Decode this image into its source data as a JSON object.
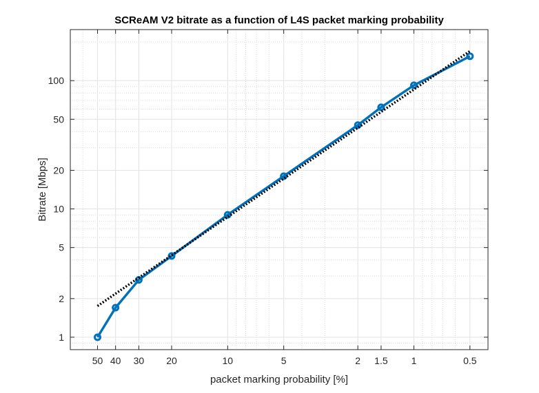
{
  "chart_data": {
    "type": "line",
    "title": "SCReAM V2 bitrate as a function of L4S packet marking probability",
    "xlabel": "packet marking probability [%]",
    "ylabel": "Bitrate [Mbps]",
    "x_scale": "log",
    "x_direction": "reversed",
    "y_scale": "log",
    "xlim": [
      0.4,
      70
    ],
    "ylim": [
      0.8,
      250
    ],
    "grid": true,
    "minor_grid": true,
    "x_ticks": [
      50,
      40,
      30,
      20,
      10,
      5,
      2,
      1.5,
      1,
      0.5
    ],
    "x_tick_labels": [
      "50",
      "40",
      "30",
      "20",
      "10",
      "5",
      "2",
      "1.5",
      "1",
      "0.5"
    ],
    "y_ticks": [
      1,
      2,
      5,
      10,
      20,
      50,
      100
    ],
    "y_tick_labels": [
      "1",
      "2",
      "5",
      "10",
      "20",
      "50",
      "100"
    ],
    "series": [
      {
        "color": "#0072BD",
        "style": "solid",
        "marker": "circle",
        "x": [
          50,
          40,
          30,
          20,
          10,
          5,
          2,
          1.5,
          1,
          0.5
        ],
        "y": [
          1.0,
          1.7,
          2.8,
          4.3,
          9.0,
          18.0,
          45.0,
          62.0,
          92.0,
          155.0
        ]
      },
      {
        "color": "#000000",
        "style": "dotted",
        "marker": "none",
        "x": [
          50,
          0.5
        ],
        "y": [
          1.75,
          170.0
        ]
      }
    ]
  }
}
